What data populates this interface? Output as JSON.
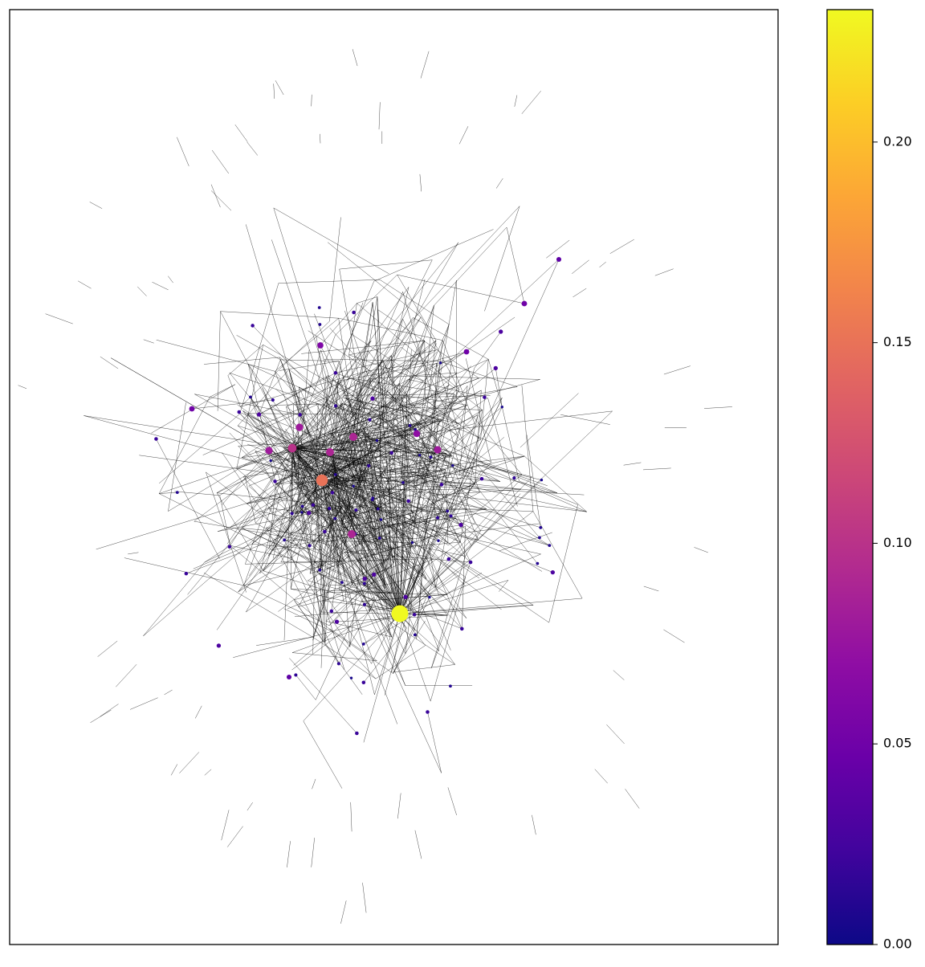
{
  "chart_data": {
    "type": "network",
    "colormap": "plasma",
    "clim": [
      0,
      0.233
    ],
    "cticks": [
      {
        "value": 0,
        "label": "0.00"
      },
      {
        "value": 0.05,
        "label": "0.05"
      },
      {
        "value": 0.1,
        "label": "0.10"
      },
      {
        "value": 0.15,
        "label": "0.15"
      },
      {
        "value": 0.2,
        "label": "0.20"
      }
    ],
    "node_values": [
      0.233,
      0.15,
      0.1,
      0.09,
      0.09,
      0.09,
      0.08,
      0.08,
      0.08,
      0.07,
      0.06,
      0.05,
      0.05,
      0.05,
      0.04,
      0.04,
      0.02,
      0.01,
      0.015,
      0.01,
      0.02,
      0.005,
      0.03,
      0.01,
      0.015,
      0.02,
      0.01,
      0.005,
      0.02,
      0.03,
      0.01,
      0.015,
      0.02,
      0.01,
      0.005,
      0.02,
      0.01,
      0.03,
      0.015,
      0.01,
      0.02,
      0.005,
      0.01,
      0.02,
      0.015,
      0.03,
      0.01,
      0.02,
      0.005,
      0.01,
      0.02,
      0.015,
      0.01,
      0.03,
      0.02,
      0.005,
      0.01,
      0.015,
      0.02,
      0.01,
      0.03,
      0.005,
      0.02,
      0.01,
      0.015,
      0.02,
      0.01,
      0.005,
      0.03,
      0.02,
      0.01,
      0.015,
      0.02,
      0.01,
      0.005,
      0.02,
      0.03,
      0.01,
      0.015,
      0.02,
      0.01,
      0.005,
      0.02,
      0.01,
      0.015,
      0.03,
      0.02,
      0.01,
      0.005,
      0.02,
      0.01,
      0.015,
      0.02,
      0.03,
      0.01,
      0.005,
      0.02,
      0.015,
      0.01,
      0.02,
      0.01,
      0.03,
      0.005,
      0.02,
      0.015,
      0.01,
      0.02,
      0.01,
      0.005,
      0.03,
      0.02,
      0.015
    ]
  }
}
